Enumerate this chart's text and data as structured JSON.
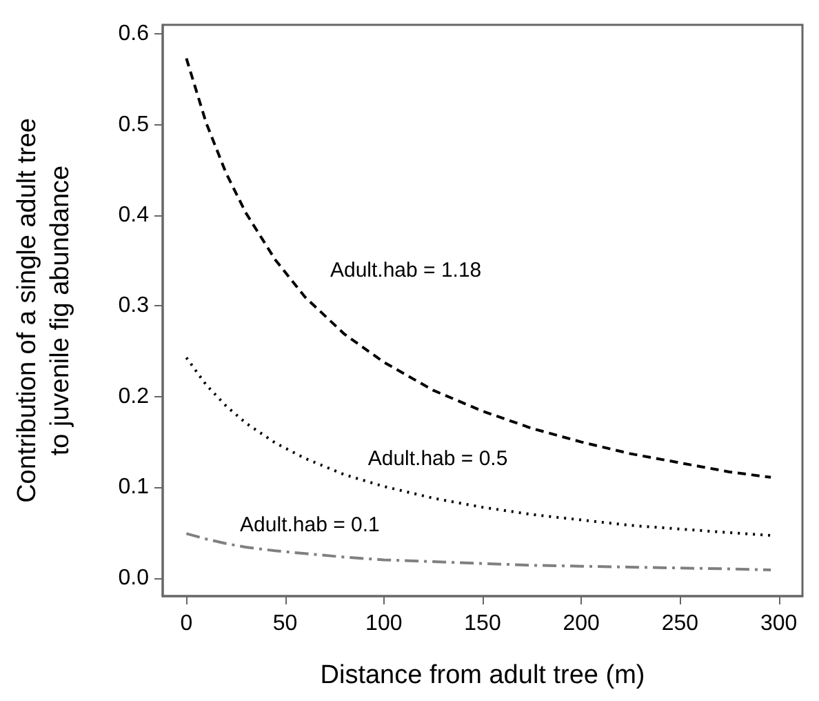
{
  "chart_data": {
    "type": "line",
    "xlabel": "Distance from adult tree (m)",
    "ylabel": "Contribution of a single adult tree\nto juvenile fig abundance",
    "x": [
      0,
      10,
      20,
      30,
      45,
      60,
      80,
      100,
      125,
      150,
      175,
      200,
      225,
      250,
      275,
      296
    ],
    "series": [
      {
        "color": "#000000",
        "line_style": "dashed",
        "values": [
          0.573,
          0.502,
          0.447,
          0.403,
          0.351,
          0.31,
          0.269,
          0.238,
          0.207,
          0.184,
          0.165,
          0.15,
          0.137,
          0.127,
          0.117,
          0.111
        ]
      },
      {
        "color": "#000000",
        "line_style": "dotted",
        "values": [
          0.243,
          0.213,
          0.19,
          0.171,
          0.149,
          0.132,
          0.114,
          0.101,
          0.088,
          0.078,
          0.07,
          0.064,
          0.058,
          0.054,
          0.05,
          0.047
        ]
      },
      {
        "color": "#808080",
        "line_style": "dashdot",
        "values": [
          0.049,
          0.043,
          0.038,
          0.034,
          0.03,
          0.027,
          0.023,
          0.02,
          0.018,
          0.016,
          0.014,
          0.013,
          0.012,
          0.011,
          0.01,
          0.009
        ]
      }
    ],
    "annotations": [
      "Adult.hab = 1.18",
      "Adult.hab = 0.5",
      "Adult.hab = 0.1"
    ],
    "xlim": [
      -12,
      312
    ],
    "xticks": [
      0,
      50,
      100,
      150,
      200,
      250,
      300
    ],
    "ylim": [
      -0.02,
      0.61
    ],
    "yticks": [
      {
        "value": 0,
        "label": "0.0"
      },
      {
        "value": 0.1,
        "label": "0.1"
      },
      {
        "value": 0.2,
        "label": "0.2"
      },
      {
        "value": 0.3,
        "label": "0.3"
      },
      {
        "value": 0.4,
        "label": "0.4"
      },
      {
        "value": 0.5,
        "label": "0.5"
      },
      {
        "value": 0.6,
        "label": "0.6"
      }
    ],
    "grid": false,
    "marker": "none"
  }
}
